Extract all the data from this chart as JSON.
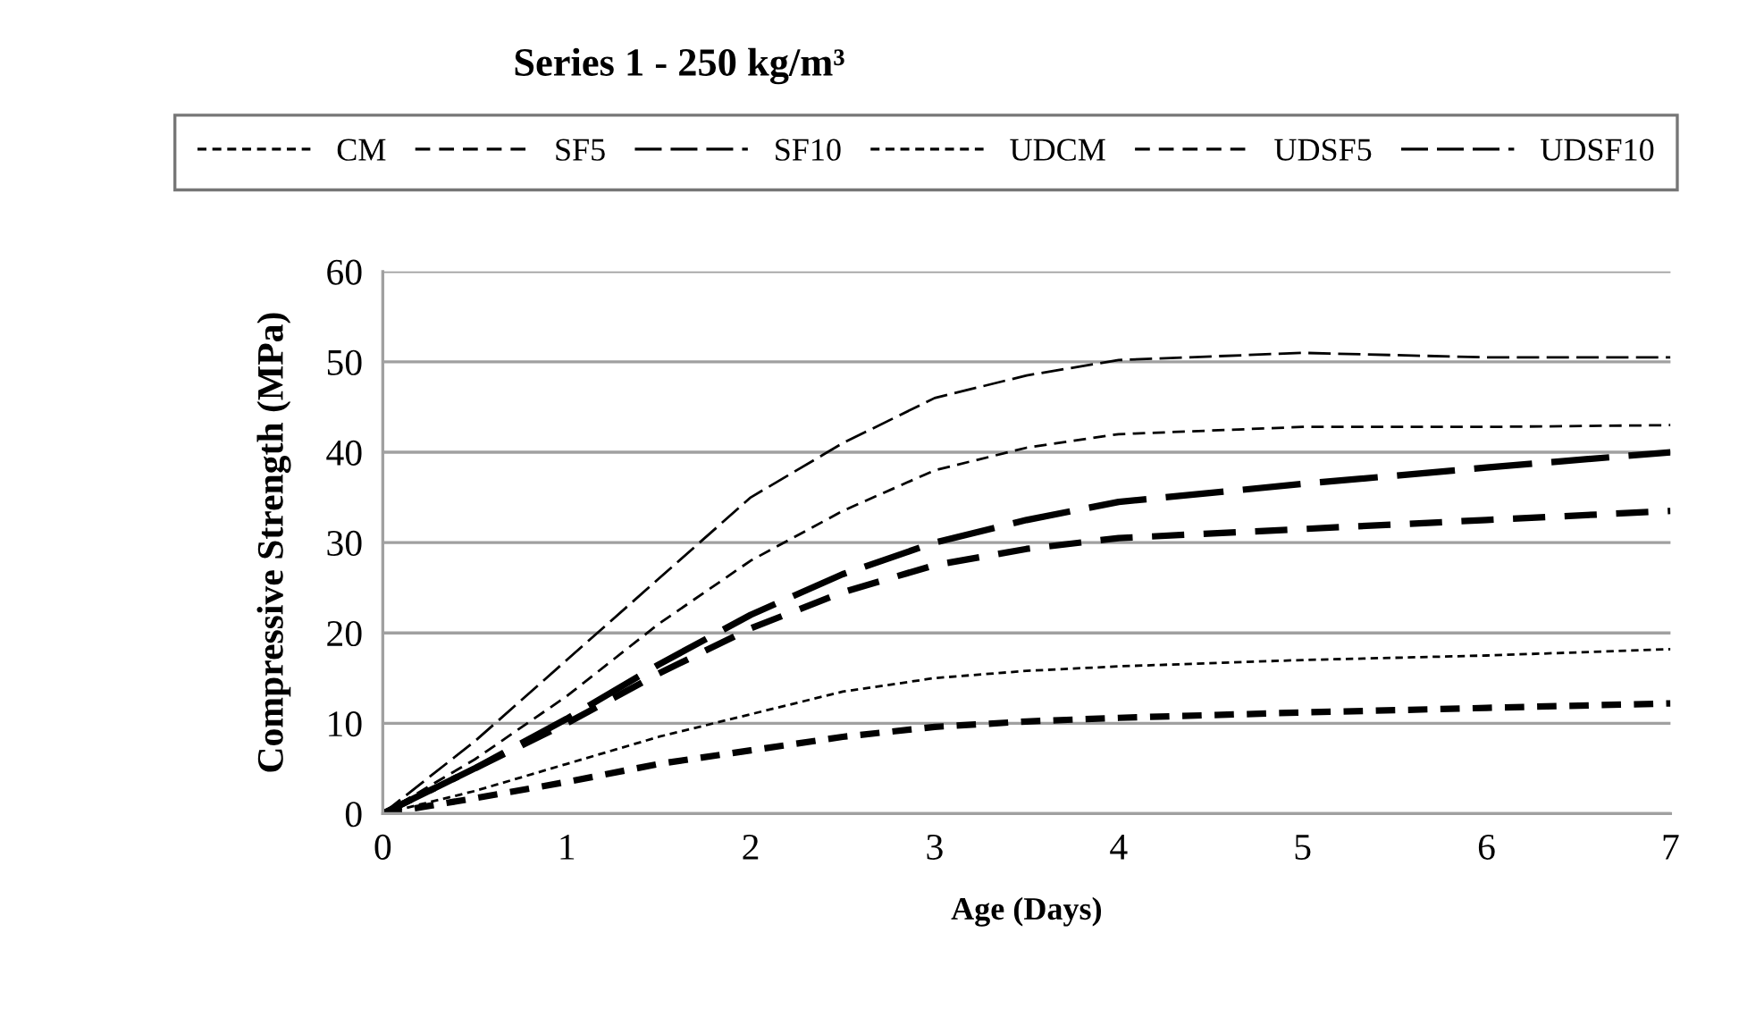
{
  "chart_data": {
    "type": "line",
    "title": "Series 1 - 250 kg/m³",
    "xlabel": "Age (Days)",
    "ylabel": "Compressive Strength (MPa)",
    "x": [
      0,
      0.5,
      1,
      1.5,
      2,
      2.5,
      3,
      3.5,
      4,
      5,
      6,
      7
    ],
    "series": [
      {
        "name": "CM",
        "color": "#000000",
        "line_style": "dotted",
        "values": [
          0,
          2.5,
          5.5,
          8.5,
          11,
          13.5,
          15,
          15.8,
          16.3,
          17,
          17.5,
          18.2
        ]
      },
      {
        "name": "SF5",
        "color": "#000000",
        "line_style": "dashed",
        "values": [
          0,
          6,
          13,
          21,
          28,
          33.5,
          38,
          40.5,
          42,
          42.8,
          42.8,
          43
        ]
      },
      {
        "name": "SF10",
        "color": "#000000",
        "line_style": "dashed",
        "values": [
          0,
          8,
          17,
          26,
          35,
          41,
          46,
          48.5,
          50.2,
          51,
          50.5,
          50.5
        ]
      },
      {
        "name": "UDCM",
        "color": "#000000",
        "line_style": "dotted",
        "values": [
          0,
          1.7,
          3.5,
          5.5,
          7,
          8.5,
          9.6,
          10.2,
          10.6,
          11.2,
          11.7,
          12.2
        ]
      },
      {
        "name": "UDSF5",
        "color": "#000000",
        "line_style": "dashed",
        "values": [
          0,
          5,
          10,
          15.5,
          20.5,
          24.5,
          27.5,
          29.3,
          30.5,
          31.5,
          32.5,
          33.5
        ]
      },
      {
        "name": "UDSF10",
        "color": "#000000",
        "line_style": "dashed",
        "values": [
          0,
          5,
          10.5,
          16.5,
          22,
          26.5,
          30,
          32.5,
          34.5,
          36.5,
          38.3,
          40
        ]
      }
    ],
    "xlim": [
      0,
      7
    ],
    "xticks": [
      0,
      1,
      2,
      3,
      4,
      5,
      6,
      7
    ],
    "ylim": [
      0,
      60
    ],
    "yticks": [
      0,
      10,
      20,
      30,
      40,
      50,
      60
    ],
    "grid": "y",
    "legend": "top"
  }
}
